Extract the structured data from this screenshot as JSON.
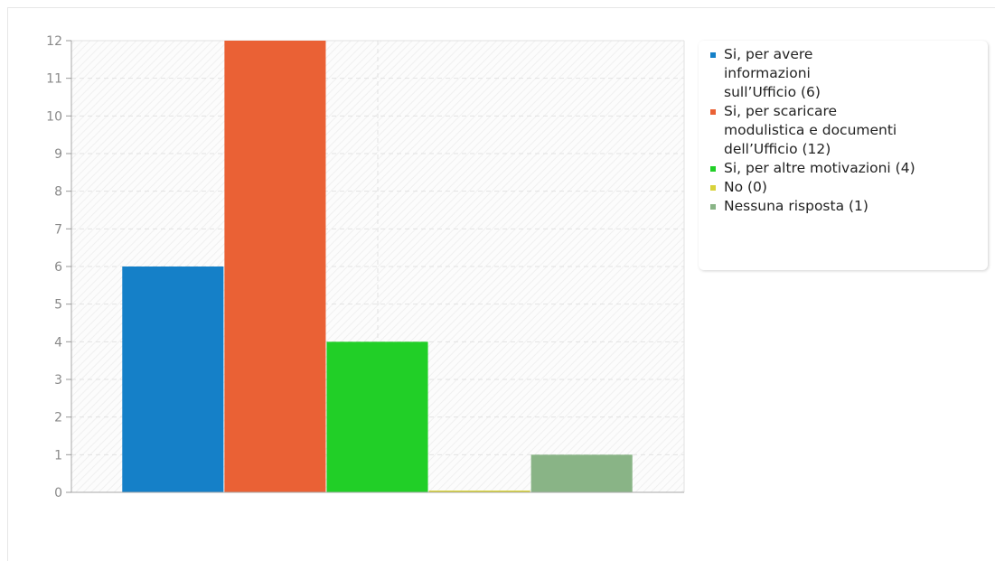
{
  "chart_data": {
    "type": "bar",
    "title": "",
    "xlabel": "",
    "ylabel": "",
    "ylim": [
      0,
      12
    ],
    "yticks": [
      0,
      1,
      2,
      3,
      4,
      5,
      6,
      7,
      8,
      9,
      10,
      11,
      12
    ],
    "grid": true,
    "legend_position": "right",
    "series": [
      {
        "label": "Si, per avere\ninformazioni\nsull’Ufficio (6)",
        "value": 6,
        "color": "#1580c8"
      },
      {
        "label": "Si, per scaricare\nmodulistica e documenti\ndell’Ufficio (12)",
        "value": 12,
        "color": "#ea6135"
      },
      {
        "label": "Si, per altre motivazioni (4)",
        "value": 4,
        "color": "#21cf27"
      },
      {
        "label": "No (0)",
        "value": 0,
        "color": "#d8d23a"
      },
      {
        "label": "Nessuna risposta (1)",
        "value": 1,
        "color": "#89b486"
      }
    ]
  }
}
